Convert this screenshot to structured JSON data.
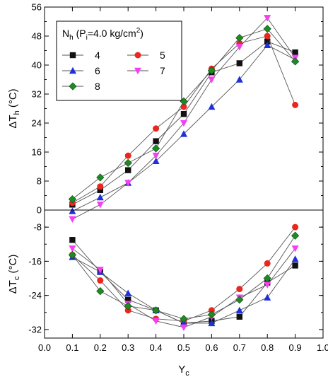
{
  "chart_data": {
    "type": "scatter",
    "x": [
      0.1,
      0.2,
      0.3,
      0.4,
      0.5,
      0.6,
      0.7,
      0.8,
      0.9
    ],
    "xlabel": "Y",
    "xlabel_sub": "c",
    "xlim": [
      0.0,
      1.0
    ],
    "xticks": [
      "0.0",
      "0.1",
      "0.2",
      "0.3",
      "0.4",
      "0.5",
      "0.6",
      "0.7",
      "0.8",
      "0.9",
      "1.0"
    ],
    "legend": {
      "title_main": "N",
      "title_main_sub": "h",
      "title_open": " (P",
      "title_p_sub": "i",
      "title_rest": "=4.0 kg/cm",
      "title_sup": "2",
      "title_close": ")",
      "placement": "top-left"
    },
    "panels": [
      {
        "id": "hot",
        "ylabel_prefix": "ΔT",
        "ylabel_sub": "h",
        "ylabel_unit": " (°C)",
        "ylim": [
          0,
          56
        ],
        "yticks": [
          "0",
          "8",
          "16",
          "24",
          "32",
          "40",
          "48",
          "56"
        ],
        "series": [
          {
            "name": "4",
            "marker": "square",
            "color": "#111111",
            "values": [
              1.5,
              5.5,
              11,
              19,
              26.5,
              38,
              40.5,
              46.5,
              43.5
            ]
          },
          {
            "name": "5",
            "marker": "circle",
            "color": "#e8281e",
            "values": [
              2,
              6.5,
              15,
              22.5,
              28.5,
              39,
              46,
              48,
              29
            ]
          },
          {
            "name": "6",
            "marker": "triangle-up",
            "color": "#1f2fe0",
            "values": [
              -0.3,
              3.5,
              7.5,
              13.5,
              21,
              28.5,
              36,
              45.5,
              41.5
            ]
          },
          {
            "name": "7",
            "marker": "triangle-down",
            "color": "#f63ef2",
            "values": [
              -2.5,
              1.5,
              7.5,
              15,
              24,
              36,
              45,
              53,
              42
            ]
          },
          {
            "name": "8",
            "marker": "diamond",
            "color": "#1e8a24",
            "values": [
              3,
              9,
              13,
              17,
              30,
              38.5,
              47.5,
              50,
              41
            ]
          }
        ]
      },
      {
        "id": "cold",
        "ylabel_prefix": "ΔT",
        "ylabel_sub": "c",
        "ylabel_unit": " (°C)",
        "ylim": [
          -34,
          -4
        ],
        "yticks": [
          "-8",
          "-16",
          "-24",
          "-32"
        ],
        "series": [
          {
            "name": "4",
            "marker": "square",
            "color": "#111111",
            "values": [
              -11,
              -18.5,
              -25,
              -27.5,
              -30.5,
              -30,
              -29,
              -21,
              -17
            ]
          },
          {
            "name": "5",
            "marker": "circle",
            "color": "#e8281e",
            "values": [
              -14.5,
              -20.5,
              -27.5,
              -29.5,
              -30,
              -27.5,
              -22.5,
              -16.5,
              -8
            ]
          },
          {
            "name": "6",
            "marker": "triangle-up",
            "color": "#1f2fe0",
            "values": [
              -15,
              -18.5,
              -23.5,
              -27.5,
              -30.5,
              -30.5,
              -27.5,
              -24.5,
              -15.5
            ]
          },
          {
            "name": "7",
            "marker": "triangle-down",
            "color": "#f63ef2",
            "values": [
              -13,
              -18,
              -26,
              -30,
              -31.5,
              -29,
              -24.5,
              -21.5,
              -13
            ]
          },
          {
            "name": "8",
            "marker": "diamond",
            "color": "#1e8a24",
            "values": [
              -14.5,
              -23,
              -26.5,
              -27.5,
              -29.5,
              -28.5,
              -25,
              -20,
              -10
            ]
          }
        ]
      }
    ]
  }
}
